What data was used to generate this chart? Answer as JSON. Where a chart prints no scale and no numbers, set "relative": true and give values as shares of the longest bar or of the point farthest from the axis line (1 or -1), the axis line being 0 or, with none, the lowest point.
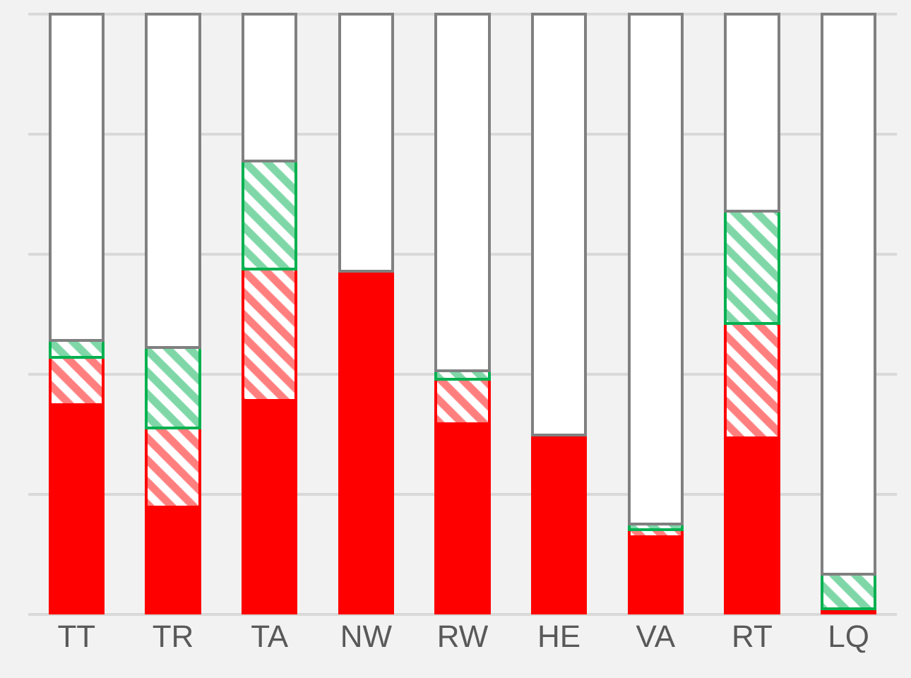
{
  "chart_data": {
    "type": "bar",
    "stacked": true,
    "relative": true,
    "grid": "y",
    "categories": [
      "TT",
      "TR",
      "TA",
      "NW",
      "RW",
      "HE",
      "VA",
      "RT",
      "LQ"
    ],
    "series": [
      {
        "color": "#ff0000",
        "values": [
          0.349,
          0.179,
          0.356,
          0.572,
          0.318,
          0.299,
          0.129,
          0.294,
          0.01
        ]
      },
      {
        "color": "#ff0000",
        "values": [
          0.079,
          0.132,
          0.22,
          0,
          0.074,
          0,
          0.012,
          0.191,
          0
        ]
      },
      {
        "color": "#00b050",
        "values": [
          0.029,
          0.134,
          0.179,
          0,
          0.014,
          0,
          0.01,
          0.187,
          0.057
        ]
      },
      {
        "color": "#ffffff",
        "values": [
          0.543,
          0.555,
          0.245,
          0.428,
          0.594,
          0.701,
          0.849,
          0.328,
          0.933
        ]
      }
    ]
  }
}
